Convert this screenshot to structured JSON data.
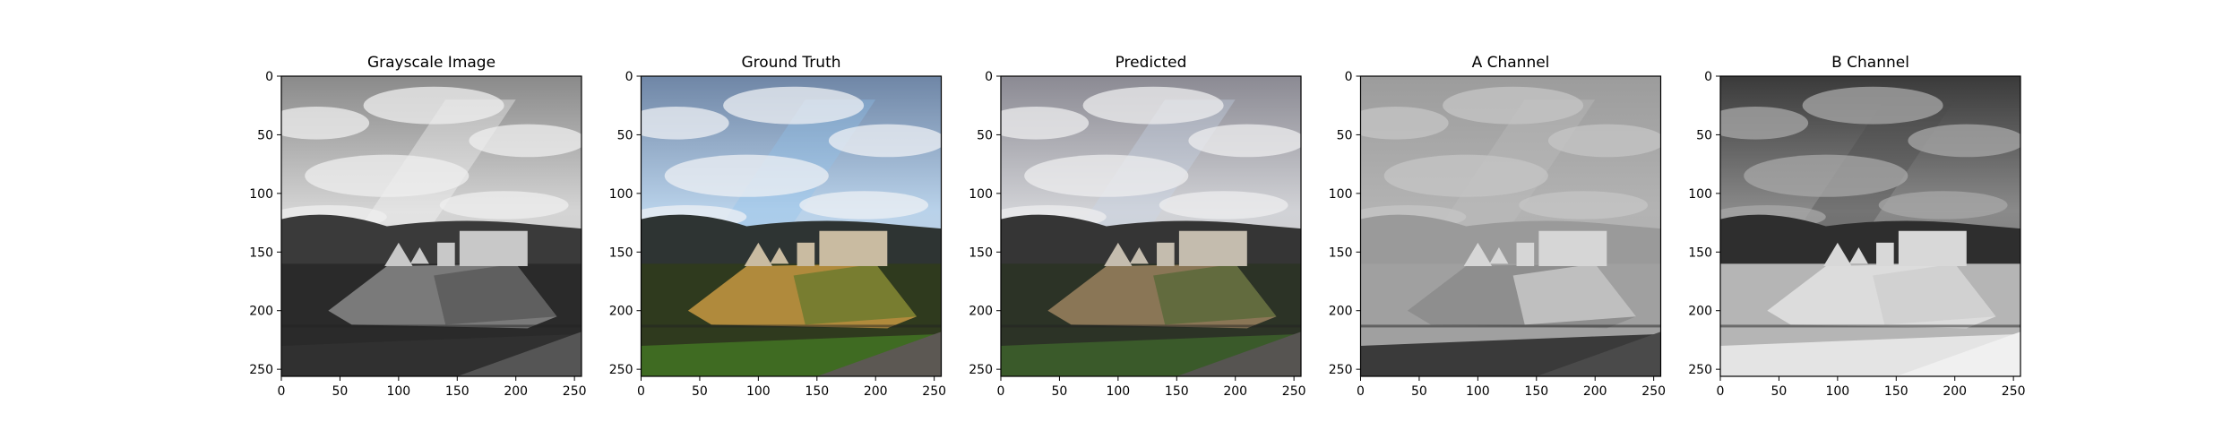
{
  "chart_data": [
    {
      "type": "image",
      "title": "Grayscale Image",
      "xticks": [
        0,
        50,
        100,
        150,
        200,
        250
      ],
      "yticks": [
        0,
        50,
        100,
        150,
        200,
        250
      ],
      "xlim": [
        0,
        256
      ],
      "ylim": [
        256,
        0
      ],
      "palette": {
        "sky_top": "#8a8a8a",
        "sky_mid": "#d4d4d4",
        "sky_low": "#bdbdbd",
        "cloud": "#efefef",
        "hills": "#3a3a3a",
        "field": "#2a2a2a",
        "slope_a": "#7a7a7a",
        "slope_b": "#5a5a5a",
        "castle": "#c8c8c8",
        "road": "#555555",
        "grass": "#303030",
        "tint": "#ffffff"
      }
    },
    {
      "type": "image",
      "title": "Ground Truth",
      "xticks": [
        0,
        50,
        100,
        150,
        200,
        250
      ],
      "yticks": [
        0,
        50,
        100,
        150,
        200,
        250
      ],
      "xlim": [
        0,
        256
      ],
      "ylim": [
        256,
        0
      ],
      "palette": {
        "sky_top": "#6f86a6",
        "sky_mid": "#b9d2ea",
        "sky_low": "#c7c9cf",
        "cloud": "#eef0f4",
        "hills": "#2e3433",
        "field": "#2f3a1e",
        "slope_a": "#b08a3c",
        "slope_b": "#6f7a2e",
        "castle": "#c9bba1",
        "road": "#5c5853",
        "grass": "#3f6b22",
        "tint": "#8fc2ee"
      }
    },
    {
      "type": "image",
      "title": "Predicted",
      "xticks": [
        0,
        50,
        100,
        150,
        200,
        250
      ],
      "yticks": [
        0,
        50,
        100,
        150,
        200,
        250
      ],
      "xlim": [
        0,
        256
      ],
      "ylim": [
        256,
        0
      ],
      "palette": {
        "sky_top": "#8b8a93",
        "sky_mid": "#d1d2d6",
        "sky_low": "#c2c1c3",
        "cloud": "#eeeeef",
        "hills": "#353535",
        "field": "#2c3326",
        "slope_a": "#8a7656",
        "slope_b": "#5b6a3a",
        "castle": "#c4bcae",
        "road": "#565451",
        "grass": "#3a5a2a",
        "tint": "#c8d7ea"
      }
    },
    {
      "type": "image",
      "title": "A Channel",
      "xticks": [
        0,
        50,
        100,
        150,
        200,
        250
      ],
      "yticks": [
        0,
        50,
        100,
        150,
        200,
        250
      ],
      "xlim": [
        0,
        256
      ],
      "ylim": [
        256,
        0
      ],
      "palette": {
        "sky_top": "#9c9c9c",
        "sky_mid": "#b3b3b3",
        "sky_low": "#a8a8a8",
        "cloud": "#c6c6c6",
        "hills": "#9a9a9a",
        "field": "#a0a0a0",
        "slope_a": "#8e8e8e",
        "slope_b": "#c8c8c8",
        "castle": "#d6d6d6",
        "road": "#4a4a4a",
        "grass": "#3a3a3a",
        "tint": "#bfbfbf"
      }
    },
    {
      "type": "image",
      "title": "B Channel",
      "xticks": [
        0,
        50,
        100,
        150,
        200,
        250
      ],
      "yticks": [
        0,
        50,
        100,
        150,
        200,
        250
      ],
      "xlim": [
        0,
        256
      ],
      "ylim": [
        256,
        0
      ],
      "palette": {
        "sky_top": "#3a3a3a",
        "sky_mid": "#8a8a8a",
        "sky_low": "#5e5e5e",
        "cloud": "#a8a8a8",
        "hills": "#2e2e2e",
        "field": "#b5b5b5",
        "slope_a": "#dcdcdc",
        "slope_b": "#cfcfcf",
        "castle": "#d8d8d8",
        "road": "#f0f0f0",
        "grass": "#e4e4e4",
        "tint": "#4a4a4a"
      }
    }
  ]
}
